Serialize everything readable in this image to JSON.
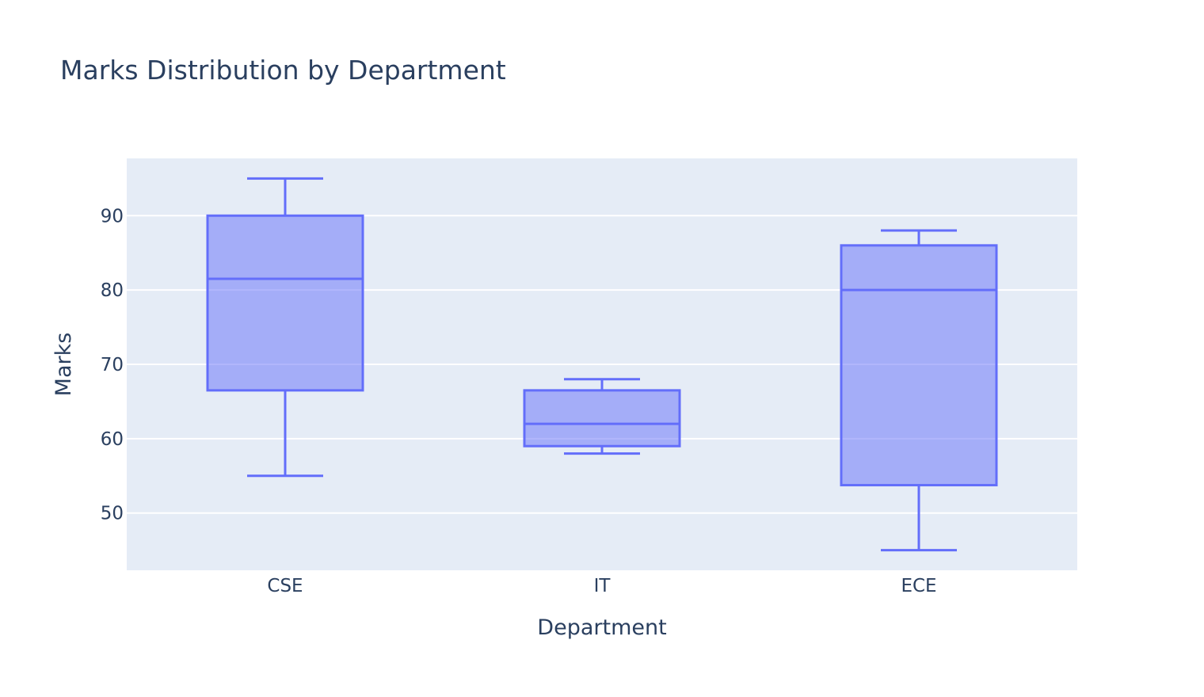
{
  "chart_data": {
    "type": "box",
    "title": "Marks Distribution by Department",
    "xlabel": "Department",
    "ylabel": "Marks",
    "categories": [
      "CSE",
      "IT",
      "ECE"
    ],
    "boxes": [
      {
        "category": "CSE",
        "min": 55,
        "q1": 66.5,
        "median": 81.5,
        "q3": 90,
        "max": 95
      },
      {
        "category": "IT",
        "min": 58,
        "q1": 59,
        "median": 62,
        "q3": 66.5,
        "max": 68
      },
      {
        "category": "ECE",
        "min": 45,
        "q1": 53.75,
        "median": 80,
        "q3": 86,
        "max": 88
      }
    ],
    "ylim": [
      42.3,
      97.7
    ],
    "yticks": [
      50,
      60,
      70,
      80,
      90
    ],
    "grid": true,
    "legend": "none",
    "colors": {
      "box_line": "#636efa",
      "box_fill": "rgba(99,110,250,0.5)",
      "plot_bg": "#e5ecf6",
      "grid": "#ffffff",
      "text": "#2a3f5f"
    }
  }
}
